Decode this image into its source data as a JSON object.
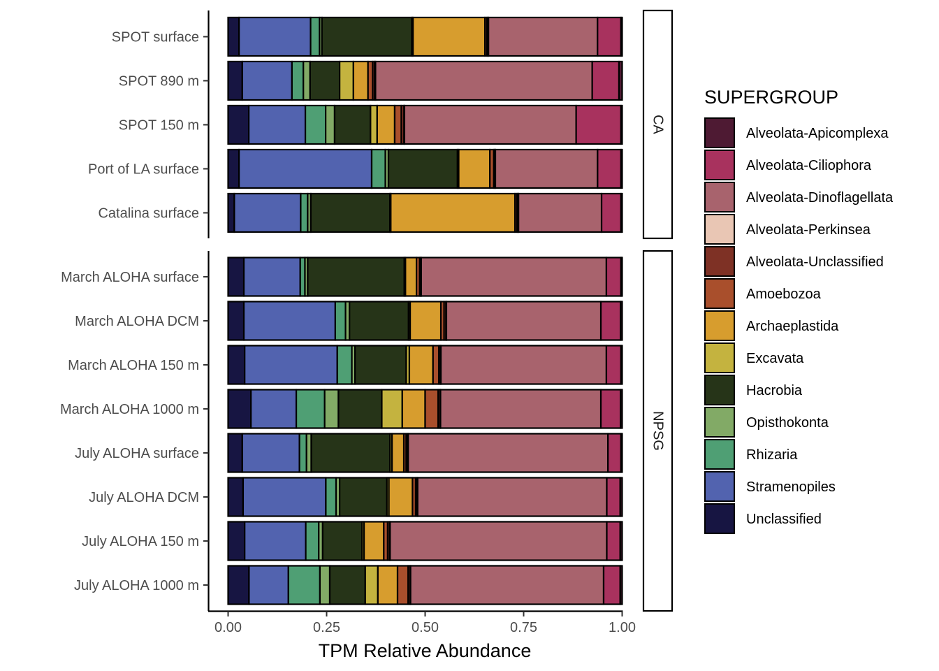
{
  "chart_data": {
    "type": "bar",
    "orientation": "horizontal",
    "stacked": true,
    "xlabel": "TPM Relative Abundance",
    "xlim": [
      0,
      1
    ],
    "xticks": [
      "0.00",
      "0.25",
      "0.50",
      "0.75",
      "1.00"
    ],
    "grid": false,
    "legend": {
      "title": "SUPERGROUP",
      "position": "right",
      "entries": [
        {
          "name": "Alveolata-Apicomplexa",
          "color": "#4e1a33"
        },
        {
          "name": "Alveolata-Ciliophora",
          "color": "#a8325e"
        },
        {
          "name": "Alveolata-Dinoflagellata",
          "color": "#a8636d"
        },
        {
          "name": "Alveolata-Perkinsea",
          "color": "#e9c6b4"
        },
        {
          "name": "Alveolata-Unclassified",
          "color": "#7e3125"
        },
        {
          "name": "Amoebozoa",
          "color": "#a94f2c"
        },
        {
          "name": "Archaeplastida",
          "color": "#d79d2e"
        },
        {
          "name": "Excavata",
          "color": "#c4b33f"
        },
        {
          "name": "Hacrobia",
          "color": "#263418"
        },
        {
          "name": "Opisthokonta",
          "color": "#82aa66"
        },
        {
          "name": "Rhizaria",
          "color": "#4f9f74"
        },
        {
          "name": "Stramenopiles",
          "color": "#5263af"
        },
        {
          "name": "Unclassified",
          "color": "#171542"
        }
      ]
    },
    "stack_order": [
      "Unclassified",
      "Stramenopiles",
      "Rhizaria",
      "Opisthokonta",
      "Hacrobia",
      "Excavata",
      "Archaeplastida",
      "Amoebozoa",
      "Alveolata-Unclassified",
      "Alveolata-Perkinsea",
      "Alveolata-Dinoflagellata",
      "Alveolata-Ciliophora",
      "Alveolata-Apicomplexa"
    ],
    "panels": [
      {
        "label": "CA",
        "rows": [
          {
            "name": "SPOT surface",
            "values": {
              "Unclassified": 0.028,
              "Stramenopiles": 0.183,
              "Rhizaria": 0.023,
              "Opisthokonta": 0.006,
              "Hacrobia": 0.23,
              "Excavata": 0.003,
              "Archaeplastida": 0.184,
              "Amoebozoa": 0.005,
              "Alveolata-Unclassified": 0.003,
              "Alveolata-Perkinsea": 0.001,
              "Alveolata-Dinoflagellata": 0.279,
              "Alveolata-Ciliophora": 0.06,
              "Alveolata-Apicomplexa": 0.003
            }
          },
          {
            "name": "SPOT 890 m",
            "values": {
              "Unclassified": 0.036,
              "Stramenopiles": 0.126,
              "Rhizaria": 0.029,
              "Opisthokonta": 0.017,
              "Hacrobia": 0.075,
              "Excavata": 0.035,
              "Archaeplastida": 0.037,
              "Amoebozoa": 0.012,
              "Alveolata-Unclassified": 0.005,
              "Alveolata-Perkinsea": 0.002,
              "Alveolata-Dinoflagellata": 0.55,
              "Alveolata-Ciliophora": 0.068,
              "Alveolata-Apicomplexa": 0.008
            }
          },
          {
            "name": "SPOT 150 m",
            "values": {
              "Unclassified": 0.053,
              "Stramenopiles": 0.145,
              "Rhizaria": 0.052,
              "Opisthokonta": 0.023,
              "Hacrobia": 0.092,
              "Excavata": 0.017,
              "Archaeplastida": 0.045,
              "Amoebozoa": 0.017,
              "Alveolata-Unclassified": 0.007,
              "Alveolata-Perkinsea": 0.001,
              "Alveolata-Dinoflagellata": 0.44,
              "Alveolata-Ciliophora": 0.115,
              "Alveolata-Apicomplexa": 0.003
            }
          },
          {
            "name": "Port of LA surface",
            "values": {
              "Unclassified": 0.028,
              "Stramenopiles": 0.34,
              "Rhizaria": 0.035,
              "Opisthokonta": 0.008,
              "Hacrobia": 0.177,
              "Excavata": 0.003,
              "Archaeplastida": 0.08,
              "Amoebozoa": 0.01,
              "Alveolata-Unclassified": 0.003,
              "Alveolata-Perkinsea": 0.001,
              "Alveolata-Dinoflagellata": 0.262,
              "Alveolata-Ciliophora": 0.06,
              "Alveolata-Apicomplexa": 0.003
            }
          },
          {
            "name": "Catalina surface",
            "values": {
              "Unclassified": 0.016,
              "Stramenopiles": 0.171,
              "Rhizaria": 0.018,
              "Opisthokonta": 0.008,
              "Hacrobia": 0.204,
              "Excavata": 0.002,
              "Archaeplastida": 0.32,
              "Amoebozoa": 0.005,
              "Alveolata-Unclassified": 0.003,
              "Alveolata-Perkinsea": 0.001,
              "Alveolata-Dinoflagellata": 0.214,
              "Alveolata-Ciliophora": 0.05,
              "Alveolata-Apicomplexa": 0.003
            }
          }
        ]
      },
      {
        "label": "NPSG",
        "rows": [
          {
            "name": "March ALOHA surface",
            "values": {
              "Unclassified": 0.04,
              "Stramenopiles": 0.143,
              "Rhizaria": 0.012,
              "Opisthokonta": 0.007,
              "Hacrobia": 0.245,
              "Excavata": 0.003,
              "Archaeplastida": 0.028,
              "Amoebozoa": 0.008,
              "Alveolata-Unclassified": 0.003,
              "Alveolata-Perkinsea": 0.001,
              "Alveolata-Dinoflagellata": 0.47,
              "Alveolata-Ciliophora": 0.037,
              "Alveolata-Apicomplexa": 0.003
            }
          },
          {
            "name": "March ALOHA DCM",
            "values": {
              "Unclassified": 0.04,
              "Stramenopiles": 0.232,
              "Rhizaria": 0.026,
              "Opisthokonta": 0.01,
              "Hacrobia": 0.15,
              "Excavata": 0.004,
              "Archaeplastida": 0.078,
              "Amoebozoa": 0.008,
              "Alveolata-Unclassified": 0.005,
              "Alveolata-Perkinsea": 0.001,
              "Alveolata-Dinoflagellata": 0.392,
              "Alveolata-Ciliophora": 0.05,
              "Alveolata-Apicomplexa": 0.004
            }
          },
          {
            "name": "March ALOHA 150 m",
            "values": {
              "Unclassified": 0.042,
              "Stramenopiles": 0.235,
              "Rhizaria": 0.037,
              "Opisthokonta": 0.008,
              "Hacrobia": 0.13,
              "Excavata": 0.008,
              "Archaeplastida": 0.06,
              "Amoebozoa": 0.015,
              "Alveolata-Unclassified": 0.004,
              "Alveolata-Perkinsea": 0.001,
              "Alveolata-Dinoflagellata": 0.42,
              "Alveolata-Ciliophora": 0.037,
              "Alveolata-Apicomplexa": 0.003
            }
          },
          {
            "name": "March ALOHA 1000 m",
            "values": {
              "Unclassified": 0.058,
              "Stramenopiles": 0.115,
              "Rhizaria": 0.072,
              "Opisthokonta": 0.035,
              "Hacrobia": 0.11,
              "Excavata": 0.052,
              "Archaeplastida": 0.058,
              "Amoebozoa": 0.033,
              "Alveolata-Unclassified": 0.005,
              "Alveolata-Perkinsea": 0.001,
              "Alveolata-Dinoflagellata": 0.407,
              "Alveolata-Ciliophora": 0.05,
              "Alveolata-Apicomplexa": 0.004
            }
          },
          {
            "name": "July ALOHA surface",
            "values": {
              "Unclassified": 0.036,
              "Stramenopiles": 0.145,
              "Rhizaria": 0.018,
              "Opisthokonta": 0.012,
              "Hacrobia": 0.2,
              "Excavata": 0.005,
              "Archaeplastida": 0.03,
              "Amoebozoa": 0.006,
              "Alveolata-Unclassified": 0.004,
              "Alveolata-Perkinsea": 0.001,
              "Alveolata-Dinoflagellata": 0.507,
              "Alveolata-Ciliophora": 0.033,
              "Alveolata-Apicomplexa": 0.003
            }
          },
          {
            "name": "July ALOHA DCM",
            "values": {
              "Unclassified": 0.038,
              "Stramenopiles": 0.21,
              "Rhizaria": 0.026,
              "Opisthokonta": 0.009,
              "Hacrobia": 0.12,
              "Excavata": 0.005,
              "Archaeplastida": 0.06,
              "Amoebozoa": 0.008,
              "Alveolata-Unclassified": 0.004,
              "Alveolata-Perkinsea": 0.001,
              "Alveolata-Dinoflagellata": 0.48,
              "Alveolata-Ciliophora": 0.034,
              "Alveolata-Apicomplexa": 0.005
            }
          },
          {
            "name": "July ALOHA 150 m",
            "values": {
              "Unclassified": 0.042,
              "Stramenopiles": 0.155,
              "Rhizaria": 0.033,
              "Opisthokonta": 0.01,
              "Hacrobia": 0.1,
              "Excavata": 0.005,
              "Archaeplastida": 0.05,
              "Amoebozoa": 0.01,
              "Alveolata-Unclassified": 0.005,
              "Alveolata-Perkinsea": 0.001,
              "Alveolata-Dinoflagellata": 0.55,
              "Alveolata-Ciliophora": 0.034,
              "Alveolata-Apicomplexa": 0.005
            }
          },
          {
            "name": "July ALOHA 1000 m",
            "values": {
              "Unclassified": 0.053,
              "Stramenopiles": 0.1,
              "Rhizaria": 0.08,
              "Opisthokonta": 0.025,
              "Hacrobia": 0.09,
              "Excavata": 0.032,
              "Archaeplastida": 0.05,
              "Amoebozoa": 0.027,
              "Alveolata-Unclassified": 0.005,
              "Alveolata-Perkinsea": 0.001,
              "Alveolata-Dinoflagellata": 0.49,
              "Alveolata-Ciliophora": 0.042,
              "Alveolata-Apicomplexa": 0.005
            }
          }
        ]
      }
    ]
  }
}
